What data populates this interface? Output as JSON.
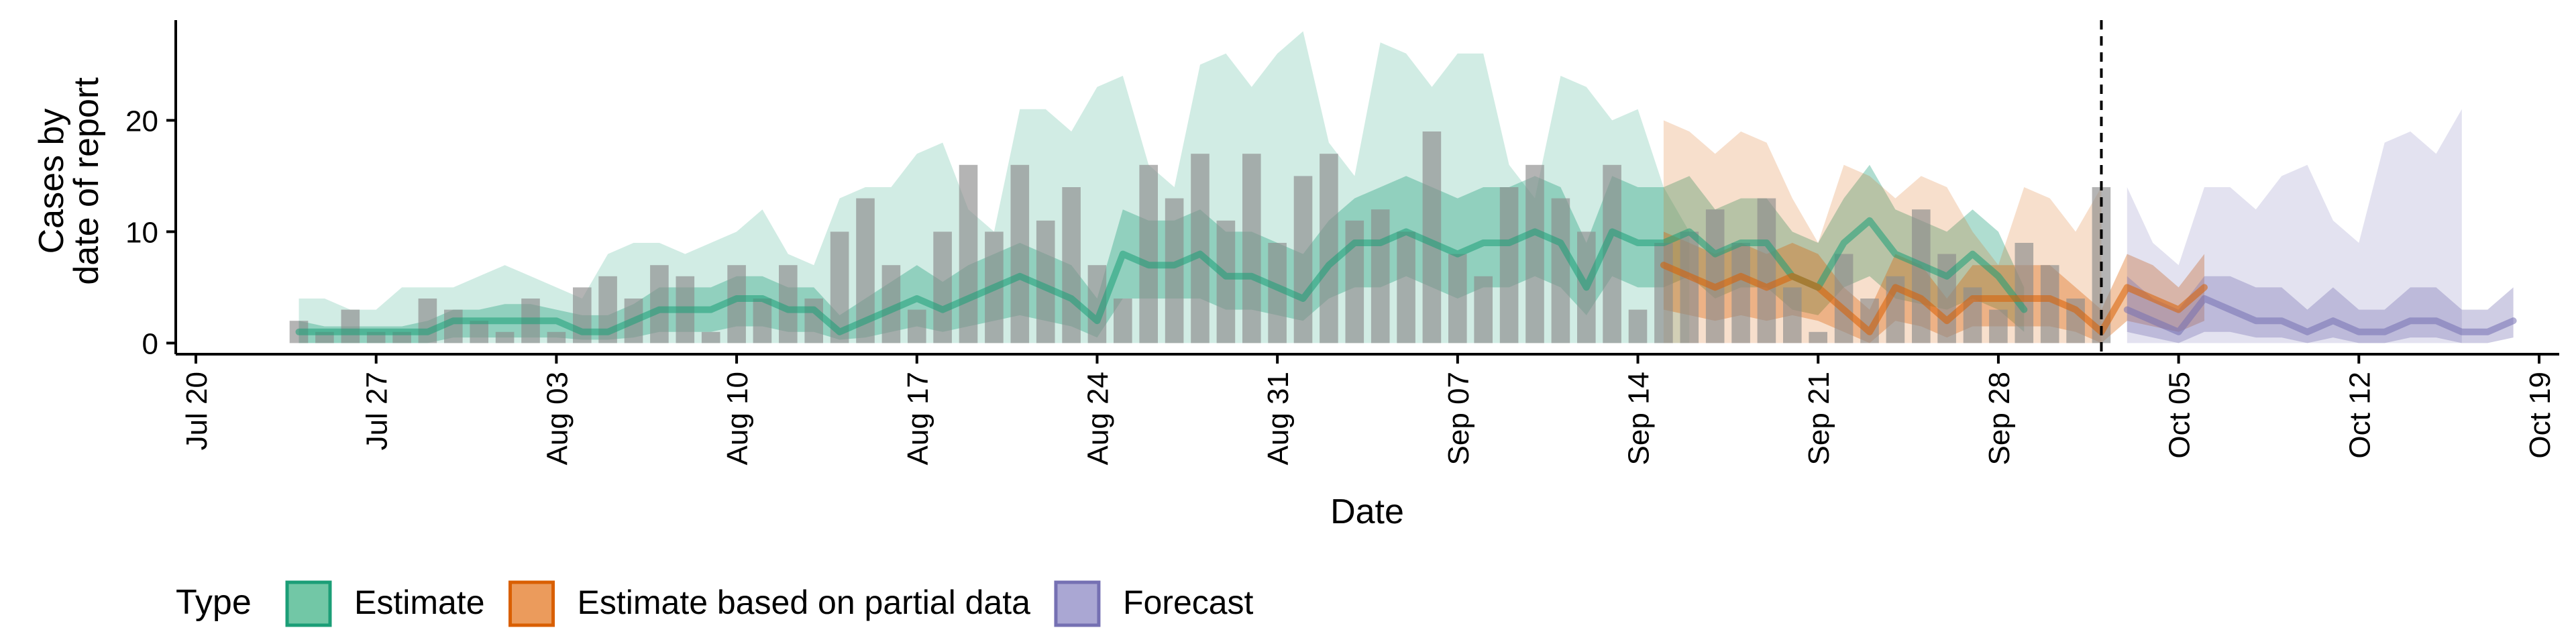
{
  "chart_data": {
    "type": "area",
    "xlabel": "Date",
    "ylabel": [
      "Cases by",
      "date of report"
    ],
    "x_range": [
      "2020-07-20",
      "2020-10-19"
    ],
    "ylim": [
      -1,
      29
    ],
    "grid": false,
    "x_ticks": [
      {
        "date": "2020-07-20",
        "label": "Jul 20"
      },
      {
        "date": "2020-07-27",
        "label": "Jul 27"
      },
      {
        "date": "2020-08-03",
        "label": "Aug 03"
      },
      {
        "date": "2020-08-10",
        "label": "Aug 10"
      },
      {
        "date": "2020-08-17",
        "label": "Aug 17"
      },
      {
        "date": "2020-08-24",
        "label": "Aug 24"
      },
      {
        "date": "2020-08-31",
        "label": "Aug 31"
      },
      {
        "date": "2020-09-07",
        "label": "Sep 07"
      },
      {
        "date": "2020-09-14",
        "label": "Sep 14"
      },
      {
        "date": "2020-09-21",
        "label": "Sep 21"
      },
      {
        "date": "2020-09-28",
        "label": "Sep 28"
      },
      {
        "date": "2020-10-05",
        "label": "Oct 05"
      },
      {
        "date": "2020-10-12",
        "label": "Oct 12"
      },
      {
        "date": "2020-10-19",
        "label": "Oct 19"
      }
    ],
    "y_ticks": [
      0,
      10,
      20
    ],
    "vline_date": "2020-10-02",
    "legend": {
      "title": "Type",
      "position": "bottom",
      "items": [
        {
          "label": "Estimate",
          "fill": "#72c7a6",
          "border": "#1b9e77"
        },
        {
          "label": "Estimate based on partial data",
          "fill": "#eb9b5c",
          "border": "#d95f02"
        },
        {
          "label": "Forecast",
          "fill": "#aaa7d3",
          "border": "#7570b3"
        }
      ]
    },
    "bars": {
      "color": "#8c8c8c",
      "start_date": "2020-07-24",
      "values": [
        2,
        1,
        3,
        1,
        1,
        4,
        3,
        2,
        1,
        4,
        1,
        5,
        6,
        4,
        7,
        6,
        1,
        7,
        4,
        7,
        4,
        10,
        13,
        7,
        3,
        10,
        16,
        10,
        16,
        11,
        14,
        7,
        4,
        16,
        13,
        17,
        11,
        17,
        9,
        15,
        17,
        11,
        12,
        10,
        19,
        8,
        6,
        14,
        16,
        13,
        10,
        16,
        3,
        9,
        10,
        12,
        9,
        13,
        5,
        1,
        8,
        4,
        6,
        12,
        8,
        5,
        3,
        9,
        7,
        4,
        14
      ]
    },
    "series": [
      {
        "type": "Estimate",
        "color": "#1b9e77",
        "start_date": "2020-07-24",
        "median": [
          1,
          1,
          1,
          1,
          1,
          1,
          2,
          2,
          2,
          2,
          2,
          1,
          1,
          2,
          3,
          3,
          3,
          4,
          4,
          3,
          3,
          1,
          2,
          3,
          4,
          3,
          4,
          5,
          6,
          5,
          4,
          2,
          8,
          7,
          7,
          8,
          6,
          6,
          5,
          4,
          7,
          9,
          9,
          10,
          9,
          8,
          9,
          9,
          10,
          9,
          5,
          10,
          9,
          9,
          10,
          8,
          9,
          9,
          6,
          5,
          9,
          11,
          8,
          7,
          6,
          8,
          6,
          3
        ],
        "q50": [
          [
            0,
            2
          ],
          [
            0,
            1.5
          ],
          [
            0,
            1.5
          ],
          [
            0,
            1.5
          ],
          [
            0,
            1.5
          ],
          [
            0,
            2
          ],
          [
            0.5,
            3
          ],
          [
            0.5,
            3
          ],
          [
            0.5,
            3.5
          ],
          [
            0.5,
            3.5
          ],
          [
            0.5,
            3
          ],
          [
            0.3,
            2.5
          ],
          [
            0.3,
            2.5
          ],
          [
            0.5,
            3.5
          ],
          [
            1,
            5
          ],
          [
            1,
            5
          ],
          [
            1,
            5
          ],
          [
            1.5,
            6
          ],
          [
            1.5,
            6
          ],
          [
            1,
            5
          ],
          [
            1,
            5
          ],
          [
            0.3,
            2.5
          ],
          [
            0.5,
            4
          ],
          [
            1,
            5.5
          ],
          [
            1.5,
            7
          ],
          [
            1,
            5.5
          ],
          [
            1.5,
            7
          ],
          [
            2,
            8
          ],
          [
            2.5,
            9
          ],
          [
            2,
            8
          ],
          [
            1.5,
            7
          ],
          [
            0.5,
            4
          ],
          [
            4,
            12
          ],
          [
            4,
            11
          ],
          [
            4,
            11
          ],
          [
            4,
            12
          ],
          [
            3,
            10
          ],
          [
            3,
            10
          ],
          [
            2.5,
            9
          ],
          [
            2,
            8
          ],
          [
            4,
            11
          ],
          [
            5,
            13
          ],
          [
            5,
            14
          ],
          [
            6,
            15
          ],
          [
            5,
            14
          ],
          [
            4,
            13
          ],
          [
            5,
            14
          ],
          [
            5,
            14
          ],
          [
            6,
            15
          ],
          [
            5,
            14
          ],
          [
            2.5,
            9
          ],
          [
            6,
            15
          ],
          [
            5,
            14
          ],
          [
            5,
            14
          ],
          [
            6,
            15
          ],
          [
            4,
            12
          ],
          [
            5,
            13
          ],
          [
            5,
            13
          ],
          [
            3,
            10
          ],
          [
            2.5,
            9
          ],
          [
            5,
            13
          ],
          [
            6,
            16
          ],
          [
            4,
            12
          ],
          [
            3.5,
            11
          ],
          [
            3,
            10
          ],
          [
            4,
            12
          ],
          [
            3,
            10
          ],
          [
            1,
            5
          ]
        ],
        "q90": [
          [
            0,
            4
          ],
          [
            0,
            4
          ],
          [
            0,
            3
          ],
          [
            0,
            3
          ],
          [
            0,
            5
          ],
          [
            0,
            5
          ],
          [
            0,
            5
          ],
          [
            0,
            6
          ],
          [
            0,
            7
          ],
          [
            0,
            6
          ],
          [
            0,
            5
          ],
          [
            0,
            4
          ],
          [
            0,
            8
          ],
          [
            0,
            9
          ],
          [
            0,
            9
          ],
          [
            0,
            8
          ],
          [
            0,
            9
          ],
          [
            0,
            10
          ],
          [
            0,
            12
          ],
          [
            0,
            8
          ],
          [
            0,
            7
          ],
          [
            0,
            13
          ],
          [
            0,
            14
          ],
          [
            0,
            14
          ],
          [
            0,
            17
          ],
          [
            0,
            18
          ],
          [
            0,
            12
          ],
          [
            0,
            10
          ],
          [
            0,
            21
          ],
          [
            0,
            21
          ],
          [
            0,
            19
          ],
          [
            0,
            23
          ],
          [
            0,
            24
          ],
          [
            0,
            16
          ],
          [
            0,
            14
          ],
          [
            0,
            25
          ],
          [
            0,
            26
          ],
          [
            0,
            23
          ],
          [
            0,
            26
          ],
          [
            0,
            28
          ],
          [
            0,
            18
          ],
          [
            0,
            15
          ],
          [
            0,
            27
          ],
          [
            0,
            26
          ],
          [
            0,
            23
          ],
          [
            0,
            26
          ],
          [
            0,
            26
          ],
          [
            0,
            16
          ],
          [
            0,
            13
          ],
          [
            0,
            24
          ],
          [
            0,
            23
          ],
          [
            0,
            20
          ],
          [
            0,
            21
          ],
          [
            0,
            14
          ],
          [
            0,
            10
          ]
        ]
      },
      {
        "type": "Estimate based on partial data",
        "color": "#d95f02",
        "start_date": "2020-09-15",
        "median": [
          7,
          6,
          5,
          6,
          5,
          6,
          5,
          3,
          1,
          5,
          4,
          2,
          4,
          4,
          4,
          4,
          3,
          1,
          5,
          4,
          3,
          5
        ],
        "q50": [
          [
            3,
            10
          ],
          [
            2.5,
            9
          ],
          [
            2,
            8
          ],
          [
            2.5,
            9
          ],
          [
            2,
            8
          ],
          [
            2.5,
            9
          ],
          [
            2,
            8
          ],
          [
            1,
            5
          ],
          [
            0,
            3
          ],
          [
            2,
            8
          ],
          [
            1.5,
            7
          ],
          [
            0.5,
            4
          ],
          [
            1.5,
            7
          ],
          [
            1.5,
            7
          ],
          [
            1.5,
            7
          ],
          [
            1.5,
            7
          ],
          [
            1,
            5
          ],
          [
            0,
            3
          ],
          [
            2,
            8
          ],
          [
            1.5,
            7
          ],
          [
            1,
            5
          ],
          [
            2,
            8
          ]
        ],
        "q90": [
          [
            0,
            20
          ],
          [
            0,
            19
          ],
          [
            0,
            17
          ],
          [
            0,
            19
          ],
          [
            0,
            18
          ],
          [
            0,
            13
          ],
          [
            0,
            9
          ],
          [
            0,
            16
          ],
          [
            0,
            15
          ],
          [
            0,
            13
          ],
          [
            0,
            15
          ],
          [
            0,
            14
          ],
          [
            0,
            10
          ],
          [
            0,
            7
          ],
          [
            0,
            14
          ],
          [
            0,
            13
          ],
          [
            0,
            10
          ],
          [
            0,
            14
          ]
        ]
      },
      {
        "type": "Forecast",
        "color": "#7570b3",
        "start_date": "2020-10-03",
        "median": [
          3,
          2,
          1,
          4,
          3,
          2,
          2,
          1,
          2,
          1,
          1,
          2,
          2,
          1,
          1,
          2
        ],
        "q50": [
          [
            1,
            6
          ],
          [
            0.5,
            4
          ],
          [
            0,
            3
          ],
          [
            1,
            6
          ],
          [
            1,
            6
          ],
          [
            0.5,
            5
          ],
          [
            0.5,
            5
          ],
          [
            0,
            3
          ],
          [
            0.5,
            5
          ],
          [
            0,
            3
          ],
          [
            0,
            3
          ],
          [
            0.5,
            5
          ],
          [
            0.5,
            5
          ],
          [
            0,
            3
          ],
          [
            0,
            3
          ],
          [
            0.5,
            5
          ]
        ],
        "q90": [
          [
            0,
            14
          ],
          [
            0,
            9
          ],
          [
            0,
            7
          ],
          [
            0,
            14
          ],
          [
            0,
            14
          ],
          [
            0,
            12
          ],
          [
            0,
            15
          ],
          [
            0,
            16
          ],
          [
            0,
            11
          ],
          [
            0,
            9
          ],
          [
            0,
            18
          ],
          [
            0,
            19
          ],
          [
            0,
            17
          ],
          [
            0,
            21
          ]
        ]
      }
    ]
  }
}
